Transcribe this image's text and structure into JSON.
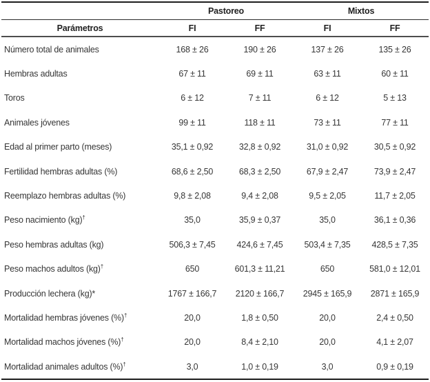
{
  "table": {
    "group_headers": [
      {
        "label": "Pastoreo"
      },
      {
        "label": "Mixtos"
      }
    ],
    "param_header": "Parámetros",
    "sub_headers": [
      "FI",
      "FF",
      "FI",
      "FF"
    ],
    "rows": [
      {
        "label": "Número total de animales",
        "sup": "",
        "values": [
          "168 ± 26",
          "190 ± 26",
          "137 ± 26",
          "135 ± 26"
        ]
      },
      {
        "label": "Hembras adultas",
        "sup": "",
        "values": [
          "67 ± 11",
          "69 ± 11",
          "63 ± 11",
          "60 ± 11"
        ]
      },
      {
        "label": "Toros",
        "sup": "",
        "values": [
          "6 ± 12",
          "7 ± 11",
          "6 ± 12",
          "5 ± 13"
        ]
      },
      {
        "label": "Animales jóvenes",
        "sup": "",
        "values": [
          "99 ± 11",
          "118 ± 11",
          "73 ± 11",
          "77 ± 11"
        ]
      },
      {
        "label": "Edad al primer parto (meses)",
        "sup": "",
        "values": [
          "35,1 ± 0,92",
          "32,8 ± 0,92",
          "31,0 ± 0,92",
          "30,5 ± 0,92"
        ]
      },
      {
        "label": "Fertilidad hembras adultas (%)",
        "sup": "",
        "values": [
          "68,6 ± 2,50",
          "68,3 ± 2,50",
          "67,9 ± 2,47",
          "73,9 ± 2,47"
        ]
      },
      {
        "label": "Reemplazo hembras adultas (%)",
        "sup": "",
        "values": [
          "9,8 ± 2,08",
          "9,4 ± 2,08",
          "9,5 ± 2,05",
          "11,7 ± 2,05"
        ]
      },
      {
        "label": "Peso nacimiento (kg)",
        "sup": "†",
        "values": [
          "35,0",
          "35,9 ± 0,37",
          "35,0",
          "36,1 ± 0,36"
        ]
      },
      {
        "label": "Peso hembras adultas (kg)",
        "sup": "",
        "values": [
          "506,3 ± 7,45",
          "424,6 ± 7,45",
          "503,4 ± 7,35",
          "428,5 ± 7,35"
        ]
      },
      {
        "label": "Peso machos adultos (kg)",
        "sup": "†",
        "values": [
          "650",
          "601,3 ± 11,21",
          "650",
          "581,0 ± 12,01"
        ]
      },
      {
        "label": "Producción lechera (kg)*",
        "sup": "",
        "values": [
          "1767 ± 166,7",
          "2120 ± 166,7",
          "2945 ± 165,9",
          "2871 ± 165,9"
        ]
      },
      {
        "label": "Mortalidad hembras jóvenes (%)",
        "sup": "†",
        "values": [
          "20,0",
          "1,8 ± 0,50",
          "20,0",
          "2,4 ± 0,50"
        ]
      },
      {
        "label": "Mortalidad machos jóvenes (%)",
        "sup": "†",
        "values": [
          "20,0",
          "8,4 ± 2,10",
          "20,0",
          "4,1 ± 2,07"
        ]
      },
      {
        "label": "Mortalidad animales adultos (%)",
        "sup": "†",
        "values": [
          "3,0",
          "1,0 ± 0,19",
          "3,0",
          "0,9 ± 0,19"
        ]
      }
    ]
  }
}
